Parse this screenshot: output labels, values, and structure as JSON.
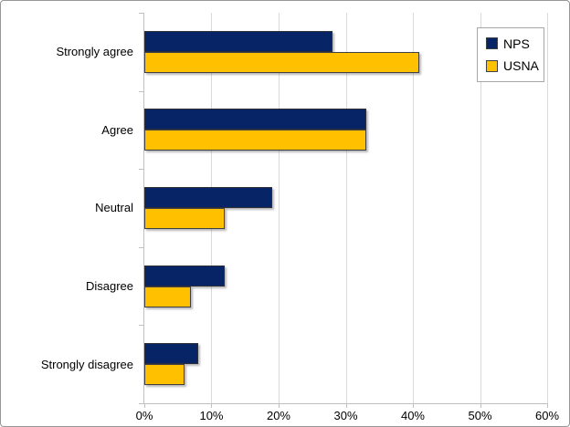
{
  "chart_data": {
    "type": "bar",
    "orientation": "horizontal",
    "title": "",
    "xlabel": "",
    "ylabel": "",
    "categories": [
      "Strongly agree",
      "Agree",
      "Neutral",
      "Disagree",
      "Strongly disagree"
    ],
    "series": [
      {
        "name": "NPS",
        "color": "#062466",
        "border": "#2F2F3A",
        "values": [
          28,
          33,
          19,
          12,
          8
        ]
      },
      {
        "name": "USNA",
        "color": "#FFC000",
        "border": "#3F3F46",
        "values": [
          41,
          33,
          12,
          7,
          6
        ]
      }
    ],
    "xlim": [
      0,
      60
    ],
    "x_ticks": [
      0,
      10,
      20,
      30,
      40,
      50,
      60
    ],
    "x_tick_labels": [
      "0%",
      "10%",
      "20%",
      "30%",
      "40%",
      "50%",
      "60%"
    ],
    "grid": "vertical",
    "legend_position": "top-right"
  },
  "colors": {
    "background": "#FFFFFF",
    "gridline": "#D9D9D9",
    "axis": "#C0C0C0",
    "chart_border": "#969696",
    "text": "#000000"
  }
}
